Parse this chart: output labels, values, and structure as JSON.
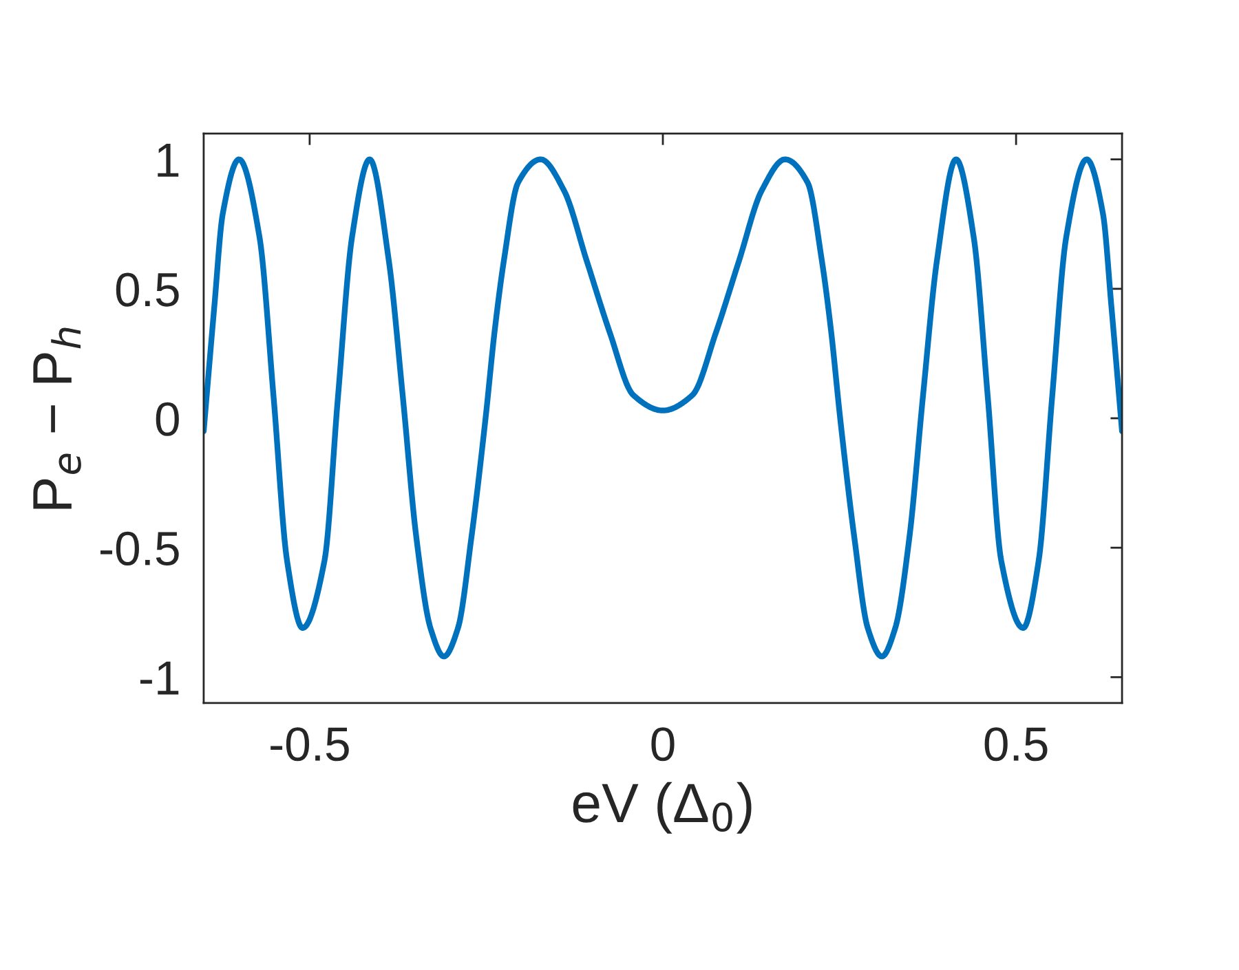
{
  "chart_data": {
    "type": "line",
    "xlabel": "eV (Δ$_{0}$)",
    "ylabel": "P$_{e}$ − P$_{h}$",
    "xlim": [
      -0.65,
      0.65
    ],
    "ylim": [
      -1.1,
      1.1
    ],
    "xticks": [
      -0.5,
      0,
      0.5
    ],
    "yticks": [
      -1,
      -0.5,
      0,
      0.5,
      1
    ],
    "grid": false,
    "line_style": "solid",
    "marker": "none",
    "series": [
      {
        "color": "#0072bd",
        "x": [
          -0.65,
          -0.635,
          -0.623,
          -0.6,
          -0.571,
          -0.551,
          -0.532,
          -0.51,
          -0.479,
          -0.46,
          -0.44,
          -0.415,
          -0.388,
          -0.368,
          -0.349,
          -0.329,
          -0.31,
          -0.29,
          -0.271,
          -0.251,
          -0.238,
          -0.225,
          -0.205,
          -0.173,
          -0.14,
          -0.108,
          -0.075,
          -0.042,
          0,
          0.042,
          0.075,
          0.108,
          0.14,
          0.173,
          0.205,
          0.225,
          0.238,
          0.251,
          0.271,
          0.29,
          0.31,
          0.329,
          0.349,
          0.368,
          0.388,
          0.415,
          0.44,
          0.46,
          0.479,
          0.51,
          0.532,
          0.551,
          0.571,
          0.6,
          0.623,
          0.635,
          0.65
        ],
        "values": [
          -0.05,
          0.43,
          0.79,
          1.0,
          0.7,
          0.08,
          -0.55,
          -0.81,
          -0.55,
          0.08,
          0.7,
          1.0,
          0.61,
          0.08,
          -0.46,
          -0.81,
          -0.92,
          -0.81,
          -0.46,
          0.0,
          0.34,
          0.61,
          0.91,
          1.0,
          0.88,
          0.61,
          0.33,
          0.09,
          0.03,
          0.09,
          0.33,
          0.61,
          0.88,
          1.0,
          0.91,
          0.61,
          0.34,
          0.0,
          -0.46,
          -0.81,
          -0.92,
          -0.81,
          -0.46,
          0.08,
          0.61,
          1.0,
          0.7,
          0.08,
          -0.55,
          -0.81,
          -0.55,
          0.08,
          0.7,
          1.0,
          0.79,
          0.43,
          -0.05
        ]
      }
    ]
  }
}
